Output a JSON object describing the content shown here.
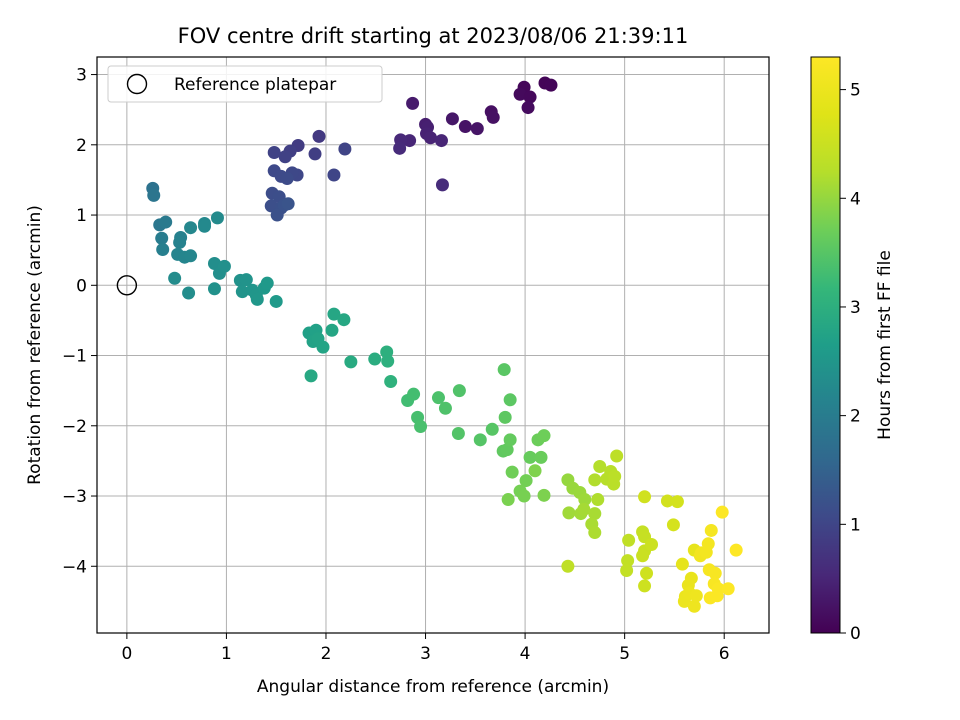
{
  "chart_data": {
    "type": "scatter",
    "title": "FOV centre drift starting at 2023/08/06 21:39:11",
    "xlabel": "Angular distance from reference (arcmin)",
    "ylabel": "Rotation from reference (arcmin)",
    "xlim": [
      -0.3,
      6.45
    ],
    "ylim": [
      -4.95,
      3.25
    ],
    "xticks": [
      "0",
      "1",
      "2",
      "3",
      "4",
      "5",
      "6"
    ],
    "yticks": [
      "3",
      "2",
      "1",
      "0",
      "−1",
      "−2",
      "−3",
      "−4"
    ],
    "grid": true,
    "legend": {
      "position": "top-left",
      "entries": [
        "Reference platepar"
      ]
    },
    "reference": {
      "x": 0,
      "y": 0
    },
    "colorbar": {
      "label": "Hours from first FF file",
      "ticks": [
        "0",
        "1",
        "2",
        "3",
        "4",
        "5"
      ],
      "range": [
        0,
        5.3
      ],
      "colormap": "viridis"
    },
    "points": [
      [
        4.2,
        2.88,
        0.05
      ],
      [
        4.26,
        2.85,
        0.06
      ],
      [
        3.99,
        2.82,
        0.08
      ],
      [
        3.95,
        2.72,
        0.12
      ],
      [
        4.05,
        2.68,
        0.1
      ],
      [
        4.03,
        2.53,
        0.14
      ],
      [
        3.66,
        2.47,
        0.2
      ],
      [
        3.68,
        2.39,
        0.22
      ],
      [
        3.4,
        2.26,
        0.25
      ],
      [
        3.52,
        2.23,
        0.27
      ],
      [
        3.27,
        2.37,
        0.3
      ],
      [
        2.87,
        2.59,
        0.35
      ],
      [
        3.0,
        2.29,
        0.4
      ],
      [
        3.02,
        2.25,
        0.42
      ],
      [
        3.01,
        2.16,
        0.45
      ],
      [
        3.05,
        2.1,
        0.47
      ],
      [
        3.16,
        2.06,
        0.5
      ],
      [
        2.84,
        2.06,
        0.52
      ],
      [
        2.75,
        2.07,
        0.55
      ],
      [
        2.74,
        1.95,
        0.58
      ],
      [
        3.17,
        1.43,
        0.6
      ],
      [
        1.93,
        2.12,
        0.8
      ],
      [
        1.72,
        1.99,
        0.85
      ],
      [
        1.89,
        1.87,
        0.88
      ],
      [
        1.64,
        1.91,
        0.9
      ],
      [
        1.59,
        1.83,
        0.93
      ],
      [
        1.48,
        1.89,
        0.95
      ],
      [
        2.19,
        1.94,
        0.98
      ],
      [
        2.08,
        1.57,
        1.0
      ],
      [
        1.71,
        1.57,
        1.02
      ],
      [
        1.66,
        1.6,
        1.04
      ],
      [
        1.48,
        1.63,
        1.06
      ],
      [
        1.55,
        1.55,
        1.08
      ],
      [
        1.61,
        1.52,
        1.1
      ],
      [
        1.46,
        1.31,
        1.12
      ],
      [
        1.53,
        1.26,
        1.14
      ],
      [
        1.45,
        1.13,
        1.16
      ],
      [
        1.55,
        1.1,
        1.18
      ],
      [
        1.51,
        1.0,
        1.2
      ],
      [
        1.58,
        1.14,
        1.22
      ],
      [
        1.62,
        1.16,
        1.24
      ],
      [
        0.26,
        1.38,
        1.8
      ],
      [
        0.27,
        1.28,
        1.85
      ],
      [
        0.33,
        0.86,
        1.9
      ],
      [
        0.39,
        0.9,
        1.95
      ],
      [
        0.35,
        0.67,
        2.0
      ],
      [
        0.36,
        0.51,
        2.05
      ],
      [
        0.54,
        0.68,
        2.1
      ],
      [
        0.53,
        0.61,
        2.12
      ],
      [
        0.51,
        0.44,
        2.15
      ],
      [
        0.58,
        0.4,
        2.18
      ],
      [
        0.64,
        0.42,
        2.2
      ],
      [
        0.64,
        0.82,
        2.22
      ],
      [
        0.78,
        0.88,
        2.24
      ],
      [
        0.78,
        0.84,
        2.26
      ],
      [
        0.91,
        0.96,
        2.28
      ],
      [
        0.48,
        0.1,
        2.3
      ],
      [
        0.62,
        -0.11,
        2.32
      ],
      [
        0.88,
        0.31,
        2.34
      ],
      [
        0.93,
        0.17,
        2.36
      ],
      [
        0.98,
        0.27,
        2.38
      ],
      [
        0.88,
        -0.05,
        2.4
      ],
      [
        1.14,
        0.07,
        2.42
      ],
      [
        1.2,
        0.08,
        2.44
      ],
      [
        1.16,
        -0.09,
        2.46
      ],
      [
        1.26,
        -0.07,
        2.48
      ],
      [
        1.3,
        -0.14,
        2.5
      ],
      [
        1.31,
        -0.2,
        2.52
      ],
      [
        1.38,
        -0.04,
        2.54
      ],
      [
        1.41,
        0.03,
        2.56
      ],
      [
        1.5,
        -0.23,
        2.58
      ],
      [
        1.83,
        -0.68,
        2.7
      ],
      [
        1.9,
        -0.64,
        2.72
      ],
      [
        1.87,
        -0.8,
        2.74
      ],
      [
        1.92,
        -0.76,
        2.76
      ],
      [
        1.97,
        -0.88,
        2.78
      ],
      [
        2.06,
        -0.64,
        2.8
      ],
      [
        2.08,
        -0.41,
        2.82
      ],
      [
        2.18,
        -0.49,
        2.84
      ],
      [
        1.85,
        -1.29,
        2.86
      ],
      [
        2.25,
        -1.09,
        2.9
      ],
      [
        2.49,
        -1.05,
        2.95
      ],
      [
        2.61,
        -0.95,
        3.0
      ],
      [
        2.62,
        -1.08,
        3.02
      ],
      [
        2.65,
        -1.37,
        3.05
      ],
      [
        2.82,
        -1.64,
        3.3
      ],
      [
        2.88,
        -1.55,
        3.32
      ],
      [
        2.92,
        -1.88,
        3.35
      ],
      [
        2.95,
        -2.01,
        3.37
      ],
      [
        3.13,
        -1.6,
        3.4
      ],
      [
        3.2,
        -1.75,
        3.42
      ],
      [
        3.34,
        -1.5,
        3.44
      ],
      [
        3.33,
        -2.11,
        3.46
      ],
      [
        3.55,
        -2.2,
        3.48
      ],
      [
        3.67,
        -2.05,
        3.5
      ],
      [
        3.79,
        -1.2,
        3.52
      ],
      [
        3.85,
        -1.63,
        3.54
      ],
      [
        3.8,
        -1.88,
        3.56
      ],
      [
        3.78,
        -2.36,
        3.58
      ],
      [
        3.82,
        -2.34,
        3.6
      ],
      [
        3.85,
        -2.2,
        3.62
      ],
      [
        4.05,
        -2.45,
        3.64
      ],
      [
        4.16,
        -2.45,
        3.66
      ],
      [
        4.13,
        -2.2,
        3.68
      ],
      [
        4.19,
        -2.14,
        3.7
      ],
      [
        3.87,
        -2.66,
        3.72
      ],
      [
        4.01,
        -2.78,
        3.74
      ],
      [
        3.95,
        -2.93,
        3.76
      ],
      [
        3.99,
        -3.0,
        3.78
      ],
      [
        3.83,
        -3.05,
        3.8
      ],
      [
        4.19,
        -2.99,
        3.82
      ],
      [
        4.1,
        -2.64,
        3.84
      ],
      [
        4.43,
        -2.77,
        4.0
      ],
      [
        4.48,
        -2.89,
        4.02
      ],
      [
        4.55,
        -2.95,
        4.04
      ],
      [
        4.6,
        -3.05,
        4.06
      ],
      [
        4.44,
        -3.24,
        4.08
      ],
      [
        4.56,
        -3.25,
        4.1
      ],
      [
        4.59,
        -3.19,
        4.12
      ],
      [
        4.7,
        -3.25,
        4.14
      ],
      [
        4.67,
        -3.4,
        4.16
      ],
      [
        4.7,
        -3.52,
        4.18
      ],
      [
        4.73,
        -3.05,
        4.2
      ],
      [
        4.7,
        -2.77,
        4.22
      ],
      [
        4.75,
        -2.58,
        4.24
      ],
      [
        4.82,
        -2.76,
        4.26
      ],
      [
        4.86,
        -2.65,
        4.28
      ],
      [
        4.89,
        -2.83,
        4.3
      ],
      [
        4.9,
        -2.72,
        4.32
      ],
      [
        4.92,
        -2.43,
        4.34
      ],
      [
        4.43,
        -4.0,
        4.36
      ],
      [
        5.04,
        -3.63,
        4.38
      ],
      [
        5.03,
        -3.92,
        4.4
      ],
      [
        5.02,
        -4.06,
        4.42
      ],
      [
        5.18,
        -3.51,
        4.44
      ],
      [
        5.2,
        -3.58,
        4.46
      ],
      [
        5.2,
        -3.78,
        4.48
      ],
      [
        5.18,
        -3.85,
        4.5
      ],
      [
        5.27,
        -3.69,
        4.52
      ],
      [
        5.2,
        -4.28,
        4.54
      ],
      [
        5.22,
        -4.1,
        4.56
      ],
      [
        5.2,
        -3.01,
        4.58
      ],
      [
        5.43,
        -3.07,
        4.6
      ],
      [
        5.53,
        -3.08,
        4.62
      ],
      [
        5.49,
        -3.41,
        4.64
      ],
      [
        5.58,
        -3.97,
        4.9
      ],
      [
        5.7,
        -3.77,
        4.92
      ],
      [
        5.67,
        -4.17,
        4.94
      ],
      [
        5.64,
        -4.27,
        4.96
      ],
      [
        5.61,
        -4.43,
        4.98
      ],
      [
        5.6,
        -4.5,
        5.0
      ],
      [
        5.65,
        -4.38,
        5.02
      ],
      [
        5.7,
        -4.57,
        5.04
      ],
      [
        5.72,
        -4.42,
        5.06
      ],
      [
        5.76,
        -3.85,
        5.08
      ],
      [
        5.77,
        -3.81,
        5.1
      ],
      [
        5.82,
        -3.8,
        5.12
      ],
      [
        5.84,
        -3.68,
        5.14
      ],
      [
        5.87,
        -3.49,
        5.16
      ],
      [
        5.85,
        -4.05,
        5.18
      ],
      [
        5.91,
        -4.1,
        5.2
      ],
      [
        5.9,
        -4.25,
        5.22
      ],
      [
        5.94,
        -4.32,
        5.24
      ],
      [
        5.86,
        -4.45,
        5.26
      ],
      [
        5.93,
        -4.42,
        5.27
      ],
      [
        5.98,
        -3.23,
        5.28
      ],
      [
        6.04,
        -4.32,
        5.29
      ],
      [
        6.12,
        -3.77,
        5.3
      ]
    ]
  }
}
